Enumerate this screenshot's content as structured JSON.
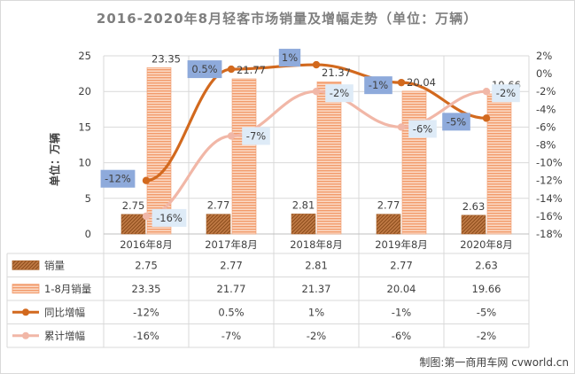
{
  "title": "2016-2020年8月轻客市场销量及增幅走势（单位：万辆）",
  "source_credit": "制图:第一商用车网 cvworld.cn",
  "colors": {
    "bar_monthly": "#a9622a",
    "bar_ytd": "#f4b18a",
    "line_yoy": "#d2691e",
    "line_cum": "#f1b7a7",
    "label_box_yoy": "#8eaadb",
    "label_box_cum": "#deebf7"
  },
  "chart_data": {
    "type": "bar",
    "title": "2016-2020年8月轻客市场销量及增幅走势（单位：万辆）",
    "ylabel": "单位：万辆",
    "categories": [
      "2016年8月",
      "2017年8月",
      "2018年8月",
      "2019年8月",
      "2020年8月"
    ],
    "ylim": [
      0,
      25
    ],
    "y_ticks": [
      "0",
      "5",
      "10",
      "15",
      "20",
      "25"
    ],
    "y2lim": [
      -18,
      2
    ],
    "y2_ticks": [
      "2%",
      "0%",
      "-2%",
      "-4%",
      "-6%",
      "-8%",
      "-10%",
      "-12%",
      "-14%",
      "-16%",
      "-18%"
    ],
    "grid": true,
    "legend": "data-table",
    "series": [
      {
        "name": "销量",
        "type": "bar",
        "axis": "left",
        "values": [
          2.75,
          2.77,
          2.81,
          2.77,
          2.63
        ],
        "labels": [
          "2.75",
          "2.77",
          "2.81",
          "2.77",
          "2.63"
        ]
      },
      {
        "name": "1-8月销量",
        "type": "bar",
        "axis": "left",
        "values": [
          23.35,
          21.77,
          21.37,
          20.04,
          19.66
        ],
        "labels": [
          "23.35",
          "21.77",
          "21.37",
          "20.04",
          "19.66"
        ]
      },
      {
        "name": "同比增幅",
        "type": "line",
        "axis": "right",
        "values": [
          -12,
          0.5,
          1,
          -1,
          -5
        ],
        "labels": [
          "-12%",
          "0.5%",
          "1%",
          "-1%",
          "-5%"
        ]
      },
      {
        "name": "累计增幅",
        "type": "line",
        "axis": "right",
        "values": [
          -16,
          -7,
          -2,
          -6,
          -2
        ],
        "labels": [
          "-16%",
          "-7%",
          "-2%",
          "-6%",
          "-2%"
        ]
      }
    ]
  }
}
